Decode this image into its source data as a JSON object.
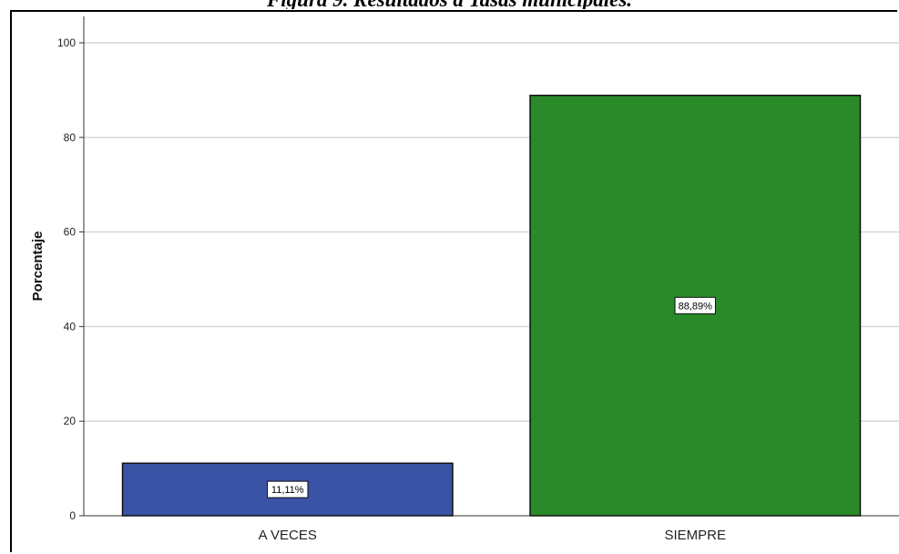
{
  "figure": {
    "caption": "Figura 9. Resultados a Tasas municipales."
  },
  "chart_data": {
    "type": "bar",
    "categories": [
      "A VECES",
      "SIEMPRE"
    ],
    "values": [
      11.11,
      88.89
    ],
    "data_labels": [
      "11,11%",
      "88,89%"
    ],
    "colors": [
      "#3a53a4",
      "#2a8a2a"
    ],
    "ylabel": "Porcentaje",
    "xlabel": "",
    "ylim": [
      0,
      100
    ],
    "yticks": [
      "0",
      "20",
      "40",
      "60",
      "80",
      "100"
    ],
    "grid": true
  }
}
